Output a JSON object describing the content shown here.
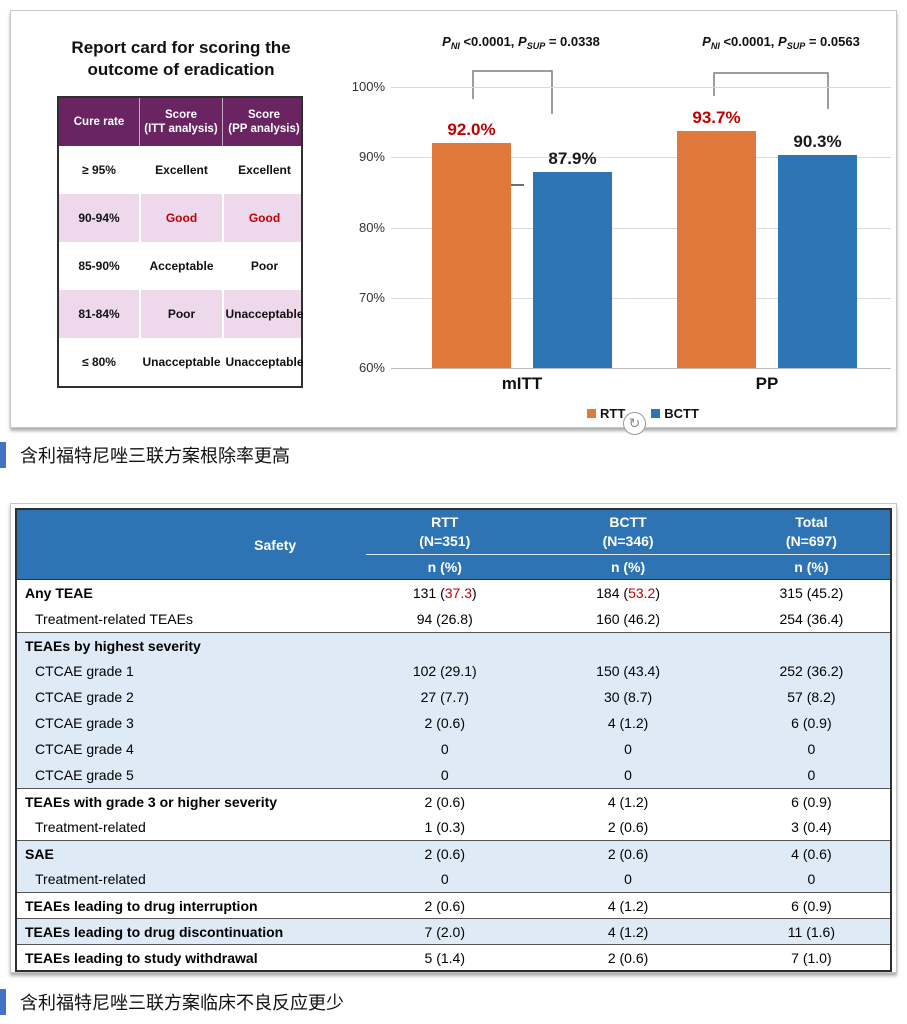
{
  "figure_panel": {
    "report_card": {
      "title": "Report card for scoring the\noutcome of eradication",
      "columns": [
        "Cure rate",
        "Score\n(ITT analysis)",
        "Score\n(PP analysis)"
      ],
      "rows": [
        {
          "rate": "≥ 95%",
          "pink": false,
          "cells": [
            {
              "t": "Excellent",
              "red": false
            },
            {
              "t": "Excellent",
              "red": false
            }
          ]
        },
        {
          "rate": "90-94%",
          "pink": true,
          "cells": [
            {
              "t": "Good",
              "red": true
            },
            {
              "t": "Good",
              "red": true
            }
          ]
        },
        {
          "rate": "85-90%",
          "pink": false,
          "cells": [
            {
              "t": "Acceptable",
              "red": false
            },
            {
              "t": "Poor",
              "red": false
            }
          ]
        },
        {
          "rate": "81-84%",
          "pink": true,
          "cells": [
            {
              "t": "Poor",
              "red": false
            },
            {
              "t": "Unacceptable",
              "red": false
            }
          ]
        },
        {
          "rate": "≤ 80%",
          "pink": false,
          "cells": [
            {
              "t": "Unacceptable",
              "red": false
            },
            {
              "t": "Unacceptable",
              "red": false
            }
          ]
        }
      ]
    },
    "refresh_icon_glyph": "↻"
  },
  "chart_data": {
    "type": "bar",
    "categories": [
      "mITT",
      "PP"
    ],
    "series": [
      {
        "name": "RTT",
        "color": "#E2793C",
        "values": [
          92.0,
          93.7
        ],
        "value_labels": [
          "92.0%",
          "93.7%"
        ],
        "label_color": "#C00000"
      },
      {
        "name": "BCTT",
        "color": "#2E75B6",
        "values": [
          87.9,
          90.3
        ],
        "value_labels": [
          "87.9%",
          "90.3%"
        ],
        "label_color": "#1A1A1A"
      }
    ],
    "ylim": [
      60,
      100
    ],
    "ytick_labels": [
      "100%",
      "90%",
      "80%",
      "70%",
      "60%"
    ],
    "grid": true,
    "legend_position": "bottom",
    "annotations": [
      {
        "target": "mITT",
        "segments": [
          {
            "t": "P",
            "s": "pi"
          },
          {
            "t": "NI",
            "s": "sub"
          },
          {
            "t": " <0.0001, ",
            "s": "n"
          },
          {
            "t": "P",
            "s": "pi"
          },
          {
            "t": "SUP",
            "s": "sub"
          },
          {
            "t": " = 0.0338",
            "s": "n"
          }
        ]
      },
      {
        "target": "PP",
        "segments": [
          {
            "t": "P",
            "s": "pi"
          },
          {
            "t": "NI",
            "s": "sub"
          },
          {
            "t": " <0.0001, ",
            "s": "n"
          },
          {
            "t": "P",
            "s": "pi"
          },
          {
            "t": "SUP",
            "s": "sub"
          },
          {
            "t": " = 0.0563",
            "s": "n"
          }
        ]
      }
    ]
  },
  "captions": {
    "efficacy": "含利福特尼唑三联方案根除率更高",
    "safety": "含利福特尼唑三联方案临床不良反应更少"
  },
  "safety_table": {
    "label_header": "Safety",
    "columns": [
      {
        "name": "RTT",
        "n": "(N=351)",
        "unit": "n (%)"
      },
      {
        "name": "BCTT",
        "n": "(N=346)",
        "unit": "n (%)"
      },
      {
        "name": "Total",
        "n": "(N=697)",
        "unit": "n (%)"
      }
    ],
    "rows": [
      {
        "label": "Any TEAE",
        "bold": true,
        "indent": 0,
        "band": "white",
        "section_start": false,
        "cells": [
          {
            "pre": "131 (",
            "red": "37.3",
            "post": ")"
          },
          {
            "pre": "184 (",
            "red": "53.2",
            "post": ")"
          },
          {
            "pre": "315 (45.2)",
            "red": "",
            "post": ""
          }
        ]
      },
      {
        "label": "Treatment-related TEAEs",
        "bold": false,
        "indent": 1,
        "band": "white",
        "section_start": false,
        "cells": [
          {
            "pre": "94 (26.8)",
            "red": "",
            "post": ""
          },
          {
            "pre": "160 (46.2)",
            "red": "",
            "post": ""
          },
          {
            "pre": "254 (36.4)",
            "red": "",
            "post": ""
          }
        ]
      },
      {
        "label": "TEAEs by highest severity",
        "bold": true,
        "indent": 0,
        "band": "blue",
        "section_start": true,
        "cells": [
          {
            "pre": "",
            "red": "",
            "post": ""
          },
          {
            "pre": "",
            "red": "",
            "post": ""
          },
          {
            "pre": "",
            "red": "",
            "post": ""
          }
        ]
      },
      {
        "label": "CTCAE grade 1",
        "bold": false,
        "indent": 1,
        "band": "blue",
        "section_start": false,
        "cells": [
          {
            "pre": "102 (29.1)",
            "red": "",
            "post": ""
          },
          {
            "pre": "150 (43.4)",
            "red": "",
            "post": ""
          },
          {
            "pre": "252 (36.2)",
            "red": "",
            "post": ""
          }
        ]
      },
      {
        "label": "CTCAE grade 2",
        "bold": false,
        "indent": 1,
        "band": "blue",
        "section_start": false,
        "cells": [
          {
            "pre": "27 (7.7)",
            "red": "",
            "post": ""
          },
          {
            "pre": "30 (8.7)",
            "red": "",
            "post": ""
          },
          {
            "pre": "57 (8.2)",
            "red": "",
            "post": ""
          }
        ]
      },
      {
        "label": "CTCAE grade 3",
        "bold": false,
        "indent": 1,
        "band": "blue",
        "section_start": false,
        "cells": [
          {
            "pre": "2 (0.6)",
            "red": "",
            "post": ""
          },
          {
            "pre": "4 (1.2)",
            "red": "",
            "post": ""
          },
          {
            "pre": "6 (0.9)",
            "red": "",
            "post": ""
          }
        ]
      },
      {
        "label": "CTCAE grade 4",
        "bold": false,
        "indent": 1,
        "band": "blue",
        "section_start": false,
        "cells": [
          {
            "pre": "0",
            "red": "",
            "post": ""
          },
          {
            "pre": "0",
            "red": "",
            "post": ""
          },
          {
            "pre": "0",
            "red": "",
            "post": ""
          }
        ]
      },
      {
        "label": "CTCAE grade 5",
        "bold": false,
        "indent": 1,
        "band": "blue",
        "section_start": false,
        "cells": [
          {
            "pre": "0",
            "red": "",
            "post": ""
          },
          {
            "pre": "0",
            "red": "",
            "post": ""
          },
          {
            "pre": "0",
            "red": "",
            "post": ""
          }
        ]
      },
      {
        "label": "TEAEs with grade 3 or higher severity",
        "bold": true,
        "indent": 0,
        "band": "white",
        "section_start": true,
        "cells": [
          {
            "pre": "2 (0.6)",
            "red": "",
            "post": ""
          },
          {
            "pre": "4 (1.2)",
            "red": "",
            "post": ""
          },
          {
            "pre": "6 (0.9)",
            "red": "",
            "post": ""
          }
        ]
      },
      {
        "label": "Treatment-related",
        "bold": false,
        "indent": 1,
        "band": "white",
        "section_start": false,
        "cells": [
          {
            "pre": "1 (0.3)",
            "red": "",
            "post": ""
          },
          {
            "pre": "2 (0.6)",
            "red": "",
            "post": ""
          },
          {
            "pre": "3 (0.4)",
            "red": "",
            "post": ""
          }
        ]
      },
      {
        "label": "SAE",
        "bold": true,
        "indent": 0,
        "band": "blue",
        "section_start": true,
        "cells": [
          {
            "pre": "2 (0.6)",
            "red": "",
            "post": ""
          },
          {
            "pre": "2 (0.6)",
            "red": "",
            "post": ""
          },
          {
            "pre": "4 (0.6)",
            "red": "",
            "post": ""
          }
        ]
      },
      {
        "label": "Treatment-related",
        "bold": false,
        "indent": 1,
        "band": "blue",
        "section_start": false,
        "cells": [
          {
            "pre": "0",
            "red": "",
            "post": ""
          },
          {
            "pre": "0",
            "red": "",
            "post": ""
          },
          {
            "pre": "0",
            "red": "",
            "post": ""
          }
        ]
      },
      {
        "label": "TEAEs leading to drug interruption",
        "bold": true,
        "indent": 0,
        "band": "white",
        "section_start": true,
        "cells": [
          {
            "pre": "2 (0.6)",
            "red": "",
            "post": ""
          },
          {
            "pre": "4 (1.2)",
            "red": "",
            "post": ""
          },
          {
            "pre": "6 (0.9)",
            "red": "",
            "post": ""
          }
        ]
      },
      {
        "label": "TEAEs leading to drug discontinuation",
        "bold": true,
        "indent": 0,
        "band": "blue",
        "section_start": true,
        "cells": [
          {
            "pre": "7 (2.0)",
            "red": "",
            "post": ""
          },
          {
            "pre": "4 (1.2)",
            "red": "",
            "post": ""
          },
          {
            "pre": "11 (1.6)",
            "red": "",
            "post": ""
          }
        ]
      },
      {
        "label": "TEAEs leading to study withdrawal",
        "bold": true,
        "indent": 0,
        "band": "white",
        "section_start": true,
        "cells": [
          {
            "pre": "5 (1.4)",
            "red": "",
            "post": ""
          },
          {
            "pre": "2 (0.6)",
            "red": "",
            "post": ""
          },
          {
            "pre": "7 (1.0)",
            "red": "",
            "post": ""
          }
        ]
      }
    ]
  },
  "colors": {
    "rtt_orange": "#E2793C",
    "bctt_blue": "#2E75B6",
    "highlight_red": "#C00000",
    "report_card_header_purple": "#6B2462",
    "report_card_pink": "#EED9EC",
    "safety_header_blue": "#2E74B5",
    "safety_row_blue": "#DEEAF6",
    "caption_bar_blue": "#4472C4"
  }
}
